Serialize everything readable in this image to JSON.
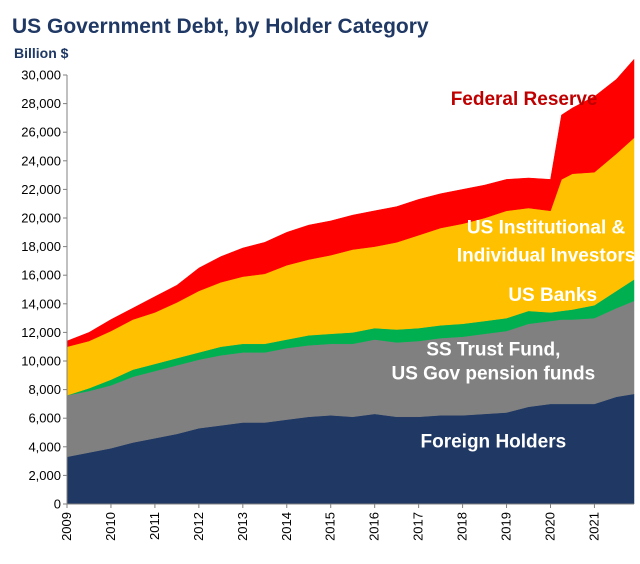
{
  "chart_data": {
    "type": "area",
    "stacked": true,
    "title": "US Government Debt, by Holder Category",
    "ylabel": "Billion $",
    "xlabel": "",
    "ylim": [
      0,
      30000
    ],
    "xlim": [
      2009.0,
      2021.9
    ],
    "grid": false,
    "legend": "none (series labeled directly on areas)",
    "y_ticks": [
      0,
      2000,
      4000,
      6000,
      8000,
      10000,
      12000,
      14000,
      16000,
      18000,
      20000,
      22000,
      24000,
      26000,
      28000,
      30000
    ],
    "y_tick_labels": [
      "0",
      "2,000",
      "4,000",
      "6,000",
      "8,000",
      "10,000",
      "12,000",
      "14,000",
      "16,000",
      "18,000",
      "20,000",
      "22,000",
      "24,000",
      "26,000",
      "28,000",
      "30,000"
    ],
    "x_ticks": [
      2009,
      2010,
      2011,
      2012,
      2013,
      2014,
      2015,
      2016,
      2017,
      2018,
      2019,
      2020,
      2021
    ],
    "x_tick_labels": [
      "2009",
      "2010",
      "2011",
      "2012",
      "2013",
      "2014",
      "2015",
      "2016",
      "2017",
      "2018",
      "2019",
      "2020",
      "2021"
    ],
    "x": [
      2009.0,
      2009.5,
      2010.0,
      2010.5,
      2011.0,
      2011.5,
      2012.0,
      2012.5,
      2013.0,
      2013.5,
      2014.0,
      2014.5,
      2015.0,
      2015.5,
      2016.0,
      2016.5,
      2017.0,
      2017.5,
      2018.0,
      2018.5,
      2019.0,
      2019.5,
      2020.0,
      2020.25,
      2020.5,
      2021.0,
      2021.5,
      2021.9
    ],
    "series": [
      {
        "name": "Foreign Holders",
        "color": "#1f3864",
        "label_color": "#ffffff",
        "values": [
          3300,
          3600,
          3900,
          4300,
          4600,
          4900,
          5300,
          5500,
          5700,
          5700,
          5900,
          6100,
          6200,
          6100,
          6300,
          6100,
          6100,
          6200,
          6200,
          6300,
          6400,
          6800,
          7000,
          7000,
          7000,
          7000,
          7500,
          7700
        ]
      },
      {
        "name": "SS Trust Fund,\nUS Gov pension funds",
        "color": "#808080",
        "label_color": "#ffffff",
        "values": [
          4300,
          4300,
          4400,
          4600,
          4700,
          4800,
          4800,
          4900,
          4900,
          4900,
          5000,
          5000,
          5000,
          5100,
          5200,
          5200,
          5300,
          5400,
          5500,
          5600,
          5700,
          5800,
          5800,
          5900,
          5900,
          6000,
          6200,
          6500
        ]
      },
      {
        "name": "US Banks",
        "color": "#00b050",
        "label_color": "#ffffff",
        "values": [
          0,
          200,
          400,
          500,
          500,
          500,
          500,
          600,
          600,
          600,
          600,
          700,
          700,
          800,
          800,
          900,
          900,
          900,
          900,
          900,
          900,
          900,
          600,
          600,
          700,
          900,
          1200,
          1500
        ]
      },
      {
        "name": "US Institutional &\nIndividual Investors",
        "color": "#ffc000",
        "label_color": "#ffffff",
        "values": [
          3400,
          3300,
          3400,
          3500,
          3600,
          3900,
          4300,
          4500,
          4700,
          4900,
          5200,
          5300,
          5500,
          5800,
          5700,
          6100,
          6500,
          6800,
          7000,
          7200,
          7500,
          7200,
          7100,
          9200,
          9500,
          9300,
          9600,
          9900
        ]
      },
      {
        "name": "Federal Reserve",
        "color": "#ff0000",
        "label_color": "#c00000",
        "values": [
          400,
          600,
          800,
          800,
          1100,
          1200,
          1600,
          1800,
          2000,
          2200,
          2300,
          2400,
          2400,
          2400,
          2500,
          2500,
          2500,
          2400,
          2400,
          2300,
          2200,
          2100,
          2200,
          4500,
          4600,
          5300,
          5200,
          5500
        ]
      }
    ]
  }
}
